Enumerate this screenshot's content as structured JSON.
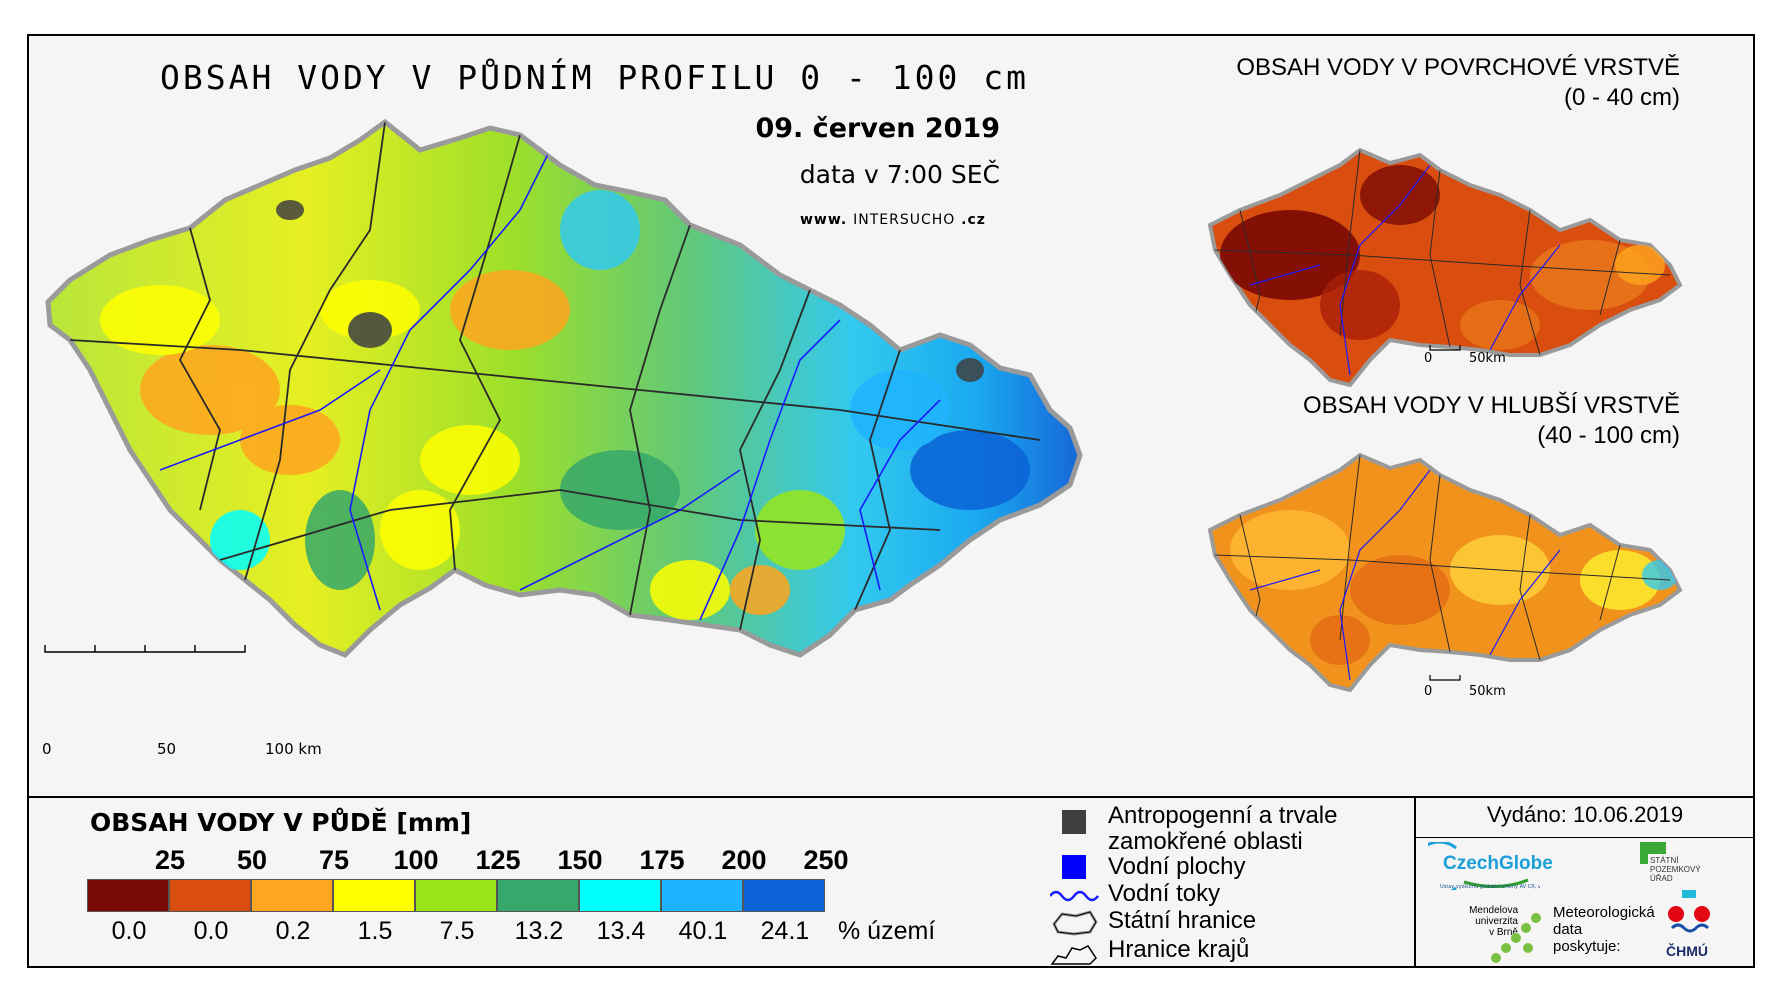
{
  "main_map": {
    "title": "OBSAH VODY V PŮDNÍM PROFILU 0 - 100 cm",
    "date": "09. červen 2019",
    "time": "data v 7:00 SEČ",
    "web_prefix": "www.",
    "web_brand": "INTERSUCHO",
    "web_suffix": ".cz",
    "scale_labels": [
      "0",
      "50",
      "100 km"
    ]
  },
  "surface_map": {
    "title_line1": "OBSAH VODY V POVRCHOVÉ VRSTVĚ",
    "title_line2": "(0 - 40 cm)",
    "scale_labels": [
      "0",
      "50km"
    ]
  },
  "deep_map": {
    "title_line1": "OBSAH VODY V HLUBŠÍ VRSTVĚ",
    "title_line2": "(40 - 100 cm)",
    "scale_labels": [
      "0",
      "50km"
    ]
  },
  "legend": {
    "title": "OBSAH VODY V PŮDĚ [mm]",
    "thresholds": [
      "25",
      "50",
      "75",
      "100",
      "125",
      "150",
      "175",
      "200",
      "250"
    ],
    "colors": [
      "#7a0a04",
      "#d94e0f",
      "#ffa51f",
      "#ffff00",
      "#99e61a",
      "#36a86b",
      "#00ffff",
      "#1fb4ff",
      "#0a62d6"
    ],
    "percentages": [
      "0.0",
      "0.0",
      "0.2",
      "1.5",
      "7.5",
      "13.2",
      "13.4",
      "40.1",
      "24.1"
    ],
    "percent_label": "% území"
  },
  "symbols": {
    "anthropogenic_line1": "Antropogenní a trvale",
    "anthropogenic_line2": "zamokřené oblasti",
    "water_bodies": "Vodní plochy",
    "streams": "Vodní toky",
    "state_border": "Státní hranice",
    "region_border": "Hranice krajů",
    "anthropogenic_color": "#404040",
    "water_color": "#0000ff"
  },
  "issued": "Vydáno: 10.06.2019",
  "logos": {
    "czechglobe": "CzechGlobe",
    "czechglobe_sub": "Ústav výzkumu globální změny AV ČR, v.v.i.",
    "spu_line1": "STÁTNÍ",
    "spu_line2": "POZEMKOVÝ",
    "spu_line3": "ÚŘAD",
    "mendel_line1": "Mendelova",
    "mendel_line2": "univerzita",
    "mendel_line3": "v Brně",
    "meteo_line1": "Meteorologická",
    "meteo_line2": "data",
    "meteo_line3": "poskytuje:",
    "chmu": "ČHMÚ"
  }
}
